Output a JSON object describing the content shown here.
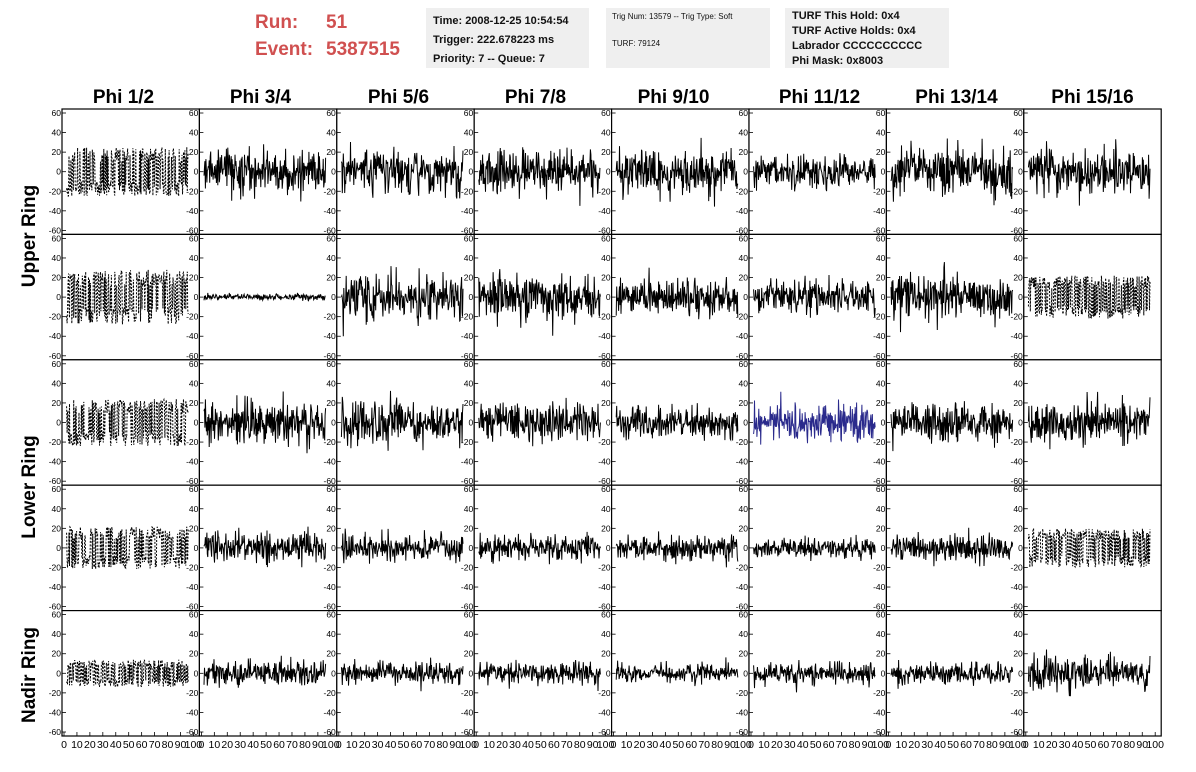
{
  "header": {
    "run_label": "Run:",
    "run_value": "51",
    "event_label": "Event:",
    "event_value": "5387515"
  },
  "info_panels": {
    "time_panel": {
      "time": "Time: 2008-12-25 10:54:54",
      "trigger": "Trigger: 222.678223 ms",
      "priority": "Priority: 7 -- Queue: 7"
    },
    "trig_panel": {
      "trig": "Trig Num: 13579 -- Trig Type: Soft",
      "turf": "TURF: 79124"
    },
    "turf_panel": {
      "hold": "TURF This Hold: 0x4",
      "active_holds": "TURF Active Holds: 0x4",
      "labrador": "Labrador CCCCCCCCCC",
      "phi_mask": "Phi Mask: 0x8003"
    }
  },
  "columns": [
    "Phi 1/2",
    "Phi 3/4",
    "Phi 5/6",
    "Phi 7/8",
    "Phi 9/10",
    "Phi 11/12",
    "Phi 13/14",
    "Phi 15/16"
  ],
  "row_labels": [
    "Upper Ring",
    "Lower Ring",
    "Nadir Ring"
  ],
  "colors": {
    "run_text": "#d05050",
    "panel_bg": "#efefef",
    "trace_normal": "#000000",
    "trace_highlight": "#2a2a8c"
  },
  "chart_data": {
    "type": "line",
    "grid_rows": 5,
    "grid_cols": 8,
    "x_range": [
      0,
      100
    ],
    "x_ticks": [
      "0",
      "10",
      "20",
      "30",
      "40",
      "50",
      "60",
      "70",
      "80",
      "90",
      "100"
    ],
    "y_range": [
      -60,
      60
    ],
    "y_ticks": [
      "60",
      "40",
      "20",
      "0",
      "-20",
      "-40",
      "-60"
    ],
    "trace_amplitude": [
      [
        25,
        22,
        22,
        20,
        22,
        16,
        22,
        22
      ],
      [
        28,
        3,
        20,
        20,
        16,
        16,
        20,
        22
      ],
      [
        24,
        20,
        22,
        18,
        16,
        18,
        18,
        18
      ],
      [
        22,
        14,
        12,
        12,
        12,
        10,
        12,
        20
      ],
      [
        14,
        12,
        10,
        10,
        8,
        10,
        10,
        16
      ]
    ],
    "trace_style": [
      [
        "dashed",
        "solid",
        "solid",
        "solid",
        "solid",
        "solid",
        "solid",
        "solid"
      ],
      [
        "dashed",
        "solid",
        "solid",
        "solid",
        "solid",
        "solid",
        "solid",
        "dashed"
      ],
      [
        "dashed",
        "solid",
        "solid",
        "solid",
        "solid",
        "highlight",
        "solid",
        "solid"
      ],
      [
        "dashed",
        "solid",
        "solid",
        "solid",
        "solid",
        "solid",
        "solid",
        "dashed"
      ],
      [
        "dashed",
        "solid",
        "solid",
        "solid",
        "solid",
        "solid",
        "solid",
        "solid"
      ]
    ]
  }
}
